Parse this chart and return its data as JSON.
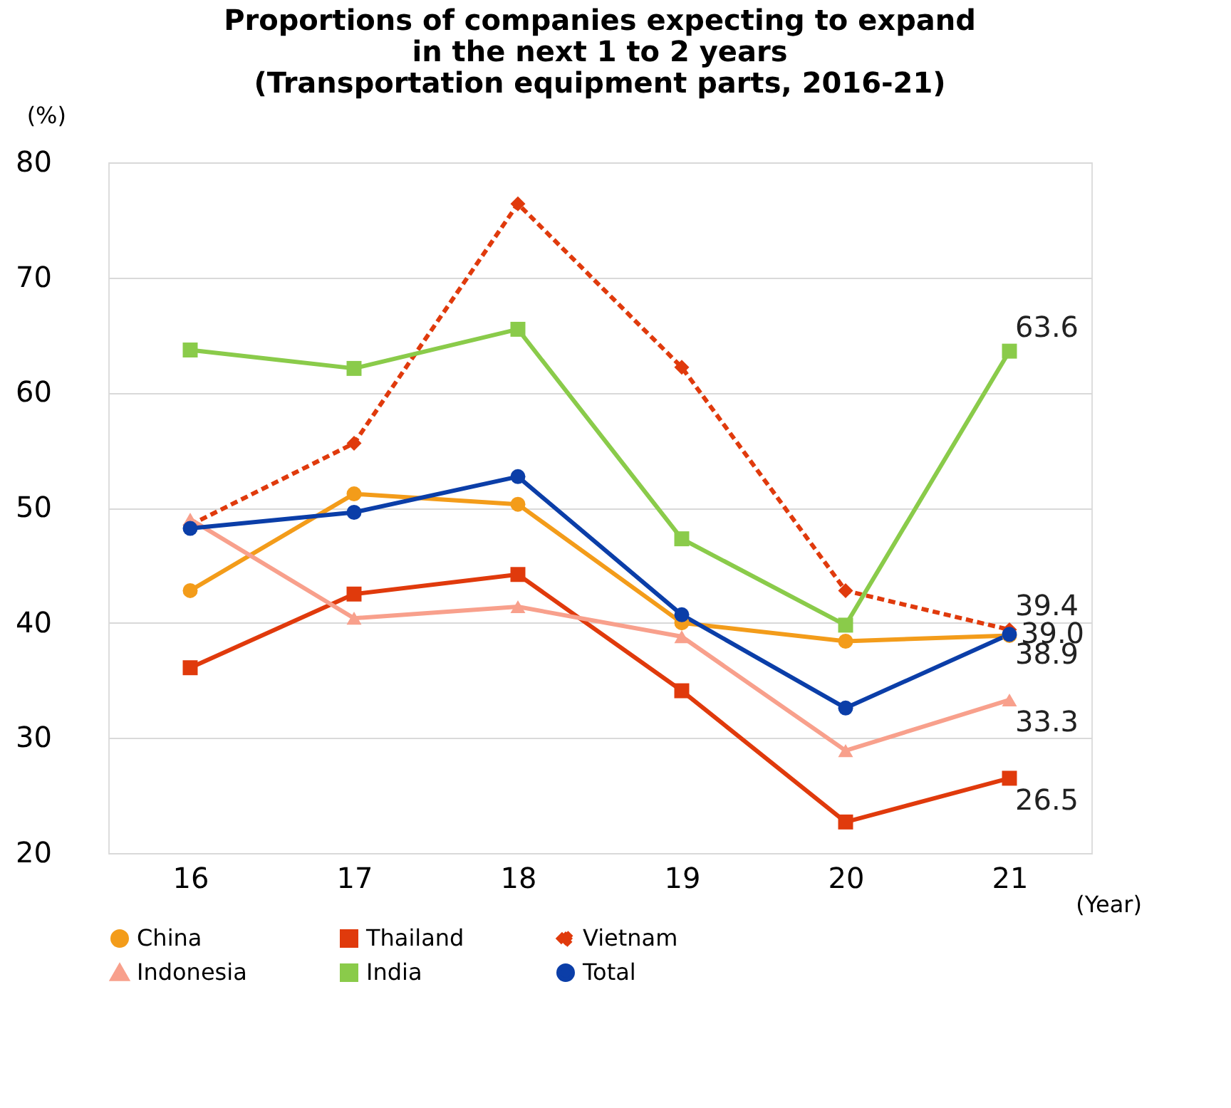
{
  "chart_data": {
    "type": "line",
    "title": [
      "Proportions of companies expecting to expand",
      "in the next 1 to 2 years",
      "(Transportation equipment parts, 2016-21)"
    ],
    "xlabel": "(Year)",
    "ylabel": "(%)",
    "categories": [
      "16",
      "17",
      "18",
      "19",
      "20",
      "21"
    ],
    "series": [
      {
        "name": "China",
        "color": "#f39c1a",
        "marker": "circle",
        "line_style": "solid",
        "values": [
          42.8,
          51.2,
          50.3,
          40.0,
          38.4,
          38.9
        ],
        "value_labels": [
          null,
          null,
          null,
          null,
          null,
          "38.9"
        ]
      },
      {
        "name": "Thailand",
        "color": "#e03a0c",
        "marker": "square",
        "line_style": "solid",
        "values": [
          36.1,
          42.5,
          44.2,
          34.1,
          22.7,
          26.5
        ],
        "value_labels": [
          null,
          null,
          null,
          null,
          null,
          "26.5"
        ]
      },
      {
        "name": "Vietnam",
        "color": "#e03a0c",
        "marker": "diamond",
        "line_style": "dashed",
        "values": [
          48.5,
          55.6,
          76.4,
          62.2,
          42.8,
          39.4
        ],
        "value_labels": [
          null,
          null,
          null,
          null,
          null,
          "39.4"
        ]
      },
      {
        "name": "Indonesia",
        "color": "#f8a08c",
        "marker": "triangle",
        "line_style": "solid",
        "values": [
          49.0,
          40.4,
          41.4,
          38.8,
          28.9,
          33.3
        ],
        "value_labels": [
          null,
          null,
          null,
          null,
          null,
          "33.3"
        ]
      },
      {
        "name": "India",
        "color": "#8acb4a",
        "marker": "square",
        "line_style": "solid",
        "values": [
          63.7,
          62.1,
          65.5,
          47.3,
          39.8,
          63.6
        ],
        "value_labels": [
          null,
          null,
          null,
          null,
          null,
          "63.6"
        ]
      },
      {
        "name": "Total",
        "color": "#0b3ea8",
        "marker": "circle",
        "line_style": "solid",
        "values": [
          48.2,
          49.6,
          52.7,
          40.7,
          32.6,
          39.0
        ],
        "value_labels": [
          null,
          null,
          null,
          null,
          null,
          "39.0"
        ]
      }
    ],
    "ylim": [
      20,
      80
    ],
    "yticks": [
      20,
      30,
      40,
      50,
      60,
      70,
      80
    ],
    "grid": "y",
    "legend": "bottom"
  }
}
